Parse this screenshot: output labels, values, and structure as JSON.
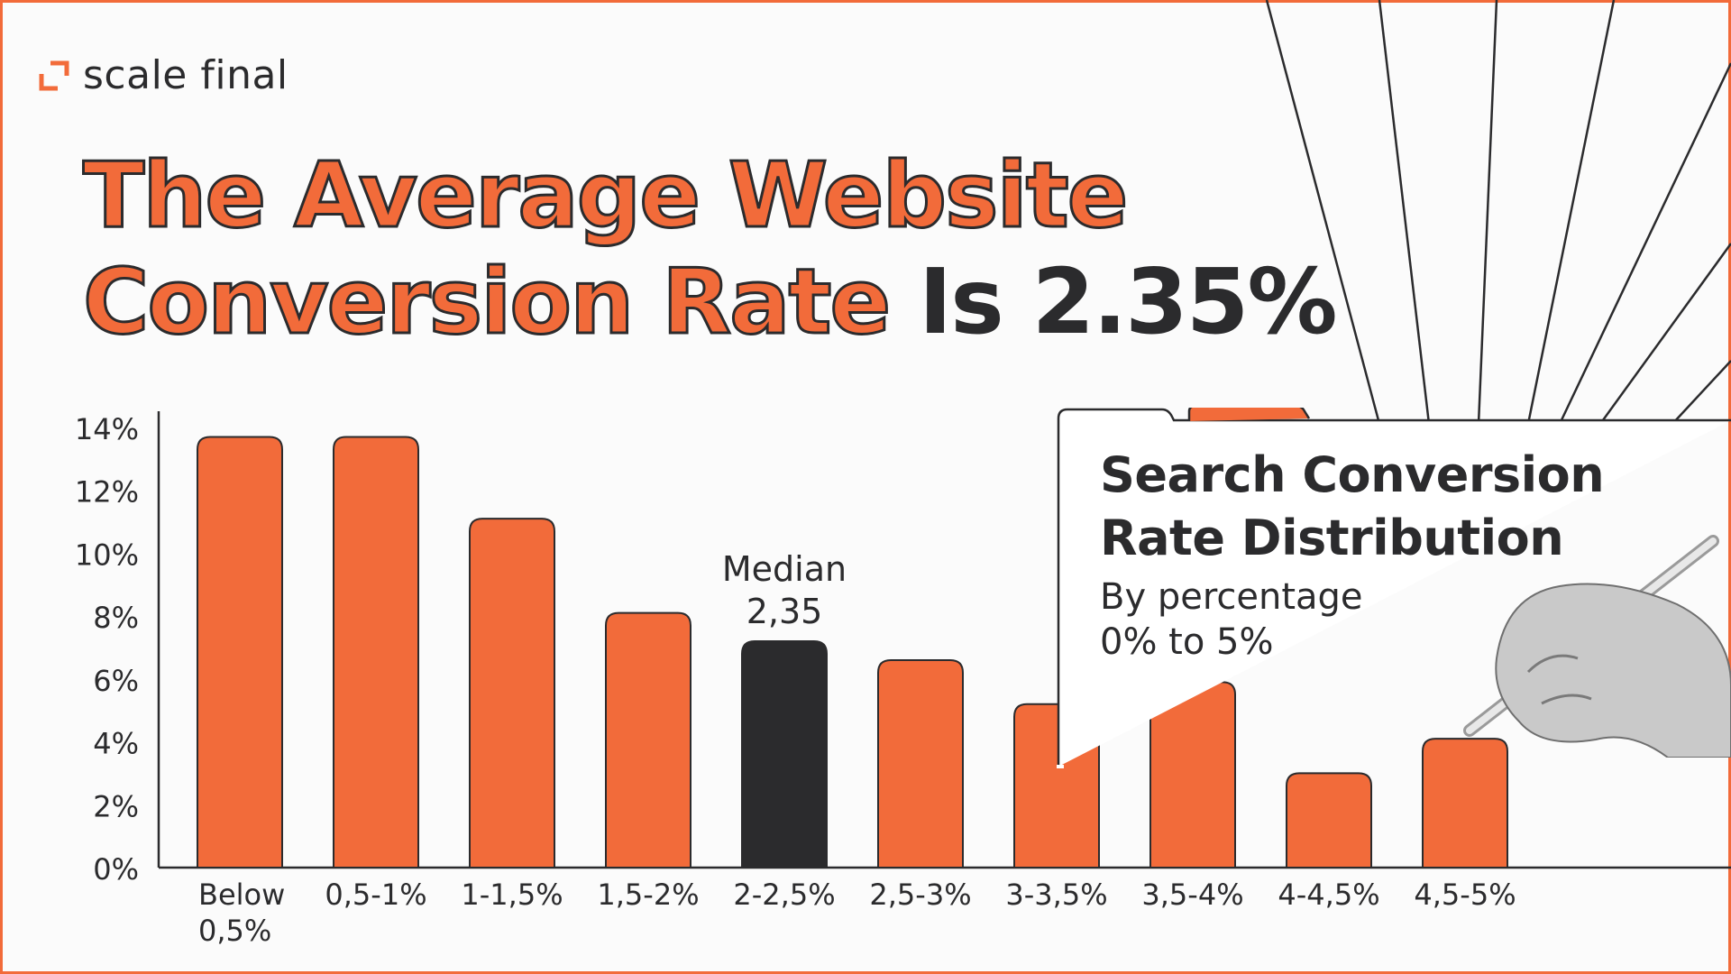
{
  "brand": {
    "name": "scale final"
  },
  "headline": {
    "line1": "The Average Website",
    "line2_orange": "Conversion Rate",
    "line2_dark": "Is 2.35%"
  },
  "panel": {
    "title_line1": "Search Conversion",
    "title_line2": "Rate Distribution",
    "subtitle_line1": "By percentage",
    "subtitle_line2": "0% to 5%"
  },
  "colors": {
    "accent": "#F26B3A",
    "dark": "#2b2b2d",
    "highlight_bar": "#2b2b2d"
  },
  "chart_data": {
    "type": "bar",
    "categories": [
      "Below 0,5%",
      "0,5-1%",
      "1-1,5%",
      "1,5-2%",
      "2-2,5%",
      "2,5-3%",
      "3-3,5%",
      "3,5-4%",
      "4-4,5%",
      "4,5-5%"
    ],
    "values": [
      13.7,
      13.7,
      11.1,
      8.1,
      7.2,
      6.6,
      5.2,
      5.9,
      3.0,
      4.1
    ],
    "highlight_index": 4,
    "yticks": [
      "0%",
      "2%",
      "4%",
      "6%",
      "8%",
      "10%",
      "12%",
      "14%"
    ],
    "ylim": [
      0,
      14
    ],
    "annotation": {
      "line1": "Median",
      "line2": "2,35"
    },
    "grid": false
  }
}
